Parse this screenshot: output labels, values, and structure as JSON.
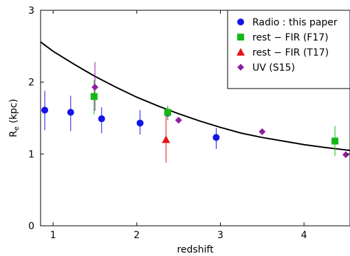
{
  "chart_data": {
    "type": "scatter",
    "xlabel": "redshift",
    "ylabel_main": "R",
    "ylabel_sub": "e",
    "ylabel_unit": " (kpc)",
    "xlim": [
      0.85,
      4.55
    ],
    "ylim": [
      0,
      3
    ],
    "xticks": [
      1,
      2,
      3,
      4
    ],
    "yticks": [
      0,
      1,
      2,
      3
    ],
    "grid": false,
    "legend_position": "top-right",
    "series": [
      {
        "name": "Radio :  this paper",
        "marker": "circle",
        "color": "#1414e6",
        "points": [
          {
            "x": 0.9,
            "y": 1.61,
            "lo": 1.33,
            "hi": 1.88
          },
          {
            "x": 1.21,
            "y": 1.58,
            "lo": 1.32,
            "hi": 1.81
          },
          {
            "x": 1.58,
            "y": 1.49,
            "lo": 1.29,
            "hi": 1.65
          },
          {
            "x": 2.04,
            "y": 1.43,
            "lo": 1.27,
            "hi": 1.61
          },
          {
            "x": 2.37,
            "y": 1.57,
            "lo": 1.47,
            "hi": 1.66
          },
          {
            "x": 2.95,
            "y": 1.23,
            "lo": 1.07,
            "hi": 1.36
          }
        ]
      },
      {
        "name": "rest − FIR (F17)",
        "marker": "square",
        "color": "#14b814",
        "points": [
          {
            "x": 1.49,
            "y": 1.8,
            "lo": 1.55,
            "hi": 2.03
          },
          {
            "x": 2.37,
            "y": 1.58,
            "lo": 1.48,
            "hi": 1.67
          },
          {
            "x": 4.37,
            "y": 1.18,
            "lo": 0.97,
            "hi": 1.39
          }
        ]
      },
      {
        "name": "rest − FIR (T17)",
        "marker": "triangle",
        "color": "#e61414",
        "points": [
          {
            "x": 2.35,
            "y": 1.2,
            "lo": 0.88,
            "hi": 1.58
          }
        ]
      },
      {
        "name": "UV (S15)",
        "marker": "diamond",
        "color": "#8e1ea0",
        "points": [
          {
            "x": 1.5,
            "y": 1.93,
            "lo": 1.6,
            "hi": 2.28
          },
          {
            "x": 2.5,
            "y": 1.47
          },
          {
            "x": 3.5,
            "y": 1.31
          },
          {
            "x": 4.5,
            "y": 0.99
          }
        ]
      }
    ],
    "curve": {
      "color": "#000000",
      "x": [
        0.85,
        1.0,
        1.25,
        1.5,
        1.75,
        2.0,
        2.25,
        2.5,
        2.75,
        3.0,
        3.25,
        3.5,
        3.75,
        4.0,
        4.25,
        4.55
      ],
      "y": [
        2.56,
        2.43,
        2.25,
        2.08,
        1.93,
        1.79,
        1.67,
        1.56,
        1.46,
        1.37,
        1.29,
        1.23,
        1.18,
        1.13,
        1.09,
        1.05
      ]
    }
  }
}
